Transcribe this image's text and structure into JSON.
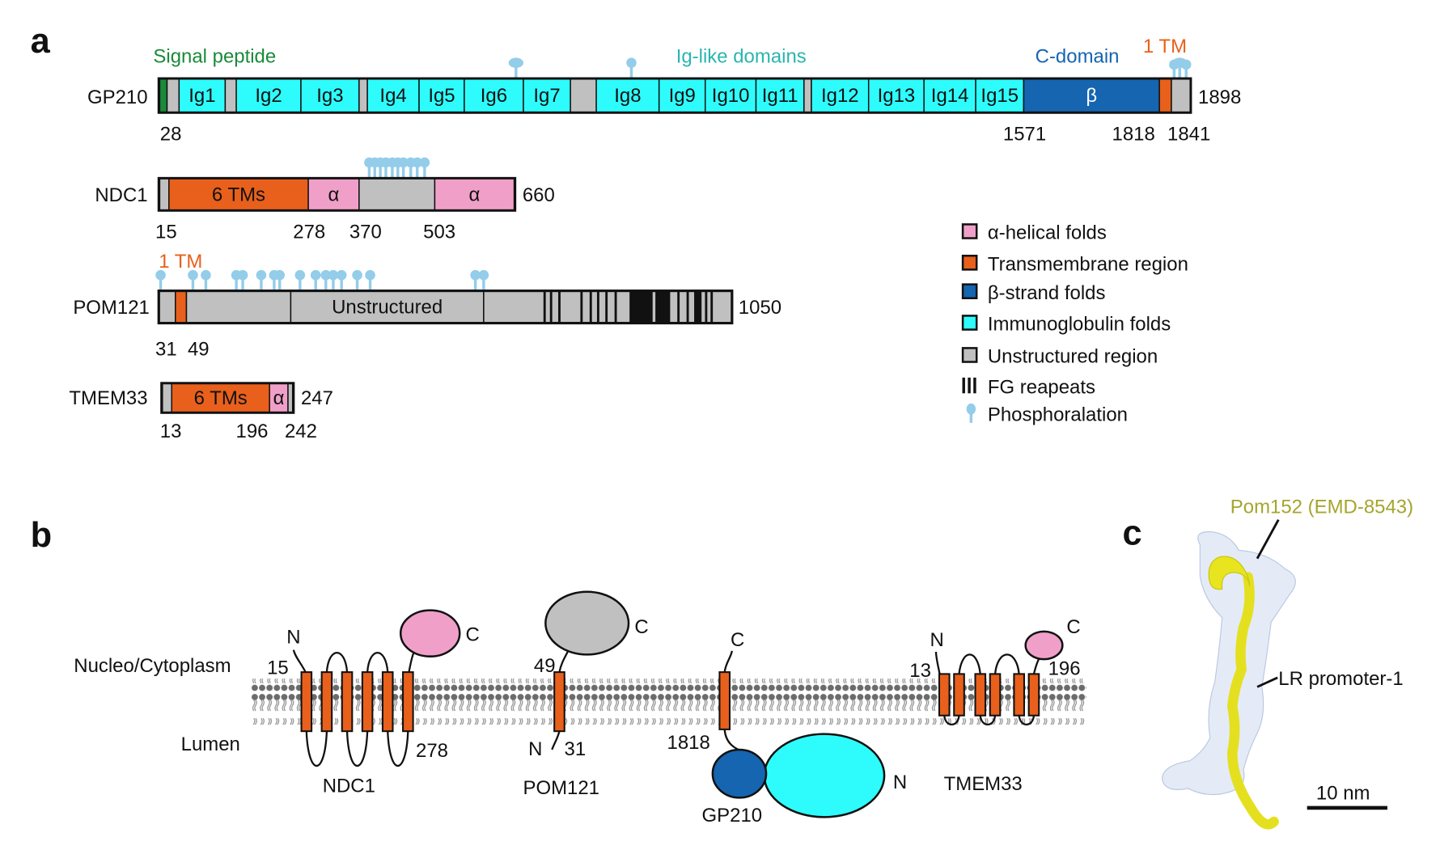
{
  "panel_labels": {
    "a": "a",
    "b": "b",
    "c": "c"
  },
  "panel_a": {
    "region_headers": {
      "signal_peptide": "Signal peptide",
      "ig_like": "Ig-like domains",
      "c_domain": "C-domain",
      "gp210_tm": "1 TM",
      "pom121_tm": "1 TM"
    },
    "proteins": [
      {
        "name": "GP210",
        "length": "1898",
        "domain_labels": [
          "Ig1",
          "Ig2",
          "Ig3",
          "Ig4",
          "Ig5",
          "Ig6",
          "Ig7",
          "Ig8",
          "Ig9",
          "Ig10",
          "Ig11",
          "Ig12",
          "Ig13",
          "Ig14",
          "Ig15",
          "β"
        ],
        "positions": [
          "28",
          "1571",
          "1818",
          "1841"
        ]
      },
      {
        "name": "NDC1",
        "length": "660",
        "domain_labels": [
          "6 TMs",
          "α",
          "α"
        ],
        "positions": [
          "15",
          "278",
          "370",
          "503"
        ]
      },
      {
        "name": "POM121",
        "length": "1050",
        "domain_labels": [
          "Unstructured"
        ],
        "positions": [
          "31",
          "49"
        ]
      },
      {
        "name": "TMEM33",
        "length": "247",
        "domain_labels": [
          "6 TMs",
          "α"
        ],
        "positions": [
          "13",
          "196",
          "242"
        ]
      }
    ]
  },
  "legend": [
    {
      "label": "α-helical folds",
      "color": "#f0a0c8",
      "icon": "swatch"
    },
    {
      "label": "Transmembrane region",
      "color": "#e8601c",
      "icon": "swatch"
    },
    {
      "label": "β-strand folds",
      "color": "#1565b0",
      "icon": "swatch"
    },
    {
      "label": "Immunoglobulin folds",
      "color": "#2efcfc",
      "icon": "swatch"
    },
    {
      "label": "Unstructured region",
      "color": "#c0c0c0",
      "icon": "swatch"
    },
    {
      "label": "FG reapeats",
      "color": "#111111",
      "icon": "fg-bars"
    },
    {
      "label": "Phosphoralation",
      "color": "#93cde9",
      "icon": "pin"
    }
  ],
  "colors": {
    "signal_peptide": "#1a8a3a",
    "ig_header": "#2ab5b0",
    "c_domain_header": "#1565b0",
    "tm_header": "#e8601c",
    "pom152_label": "#a5a52e",
    "membrane": "#6b6b6b"
  },
  "panel_b": {
    "compartments": {
      "cytoplasm": "Nucleo/Cytoplasm",
      "lumen": "Lumen"
    },
    "proteins": [
      {
        "name": "NDC1",
        "n": "N",
        "c": "C",
        "n_pos": "15",
        "c_pos": "278"
      },
      {
        "name": "POM121",
        "n": "N",
        "c": "C",
        "n_pos": "31",
        "c_pos": "49"
      },
      {
        "name": "GP210",
        "n": "N",
        "c": "C",
        "tm_pos": "1818"
      },
      {
        "name": "TMEM33",
        "n": "N",
        "c": "C",
        "n_pos": "13",
        "c_pos": "196"
      }
    ]
  },
  "panel_c": {
    "pom152_label": "Pom152 (EMD-8543)",
    "lr_label": "LR promoter-1",
    "scale_bar": "10 nm"
  }
}
